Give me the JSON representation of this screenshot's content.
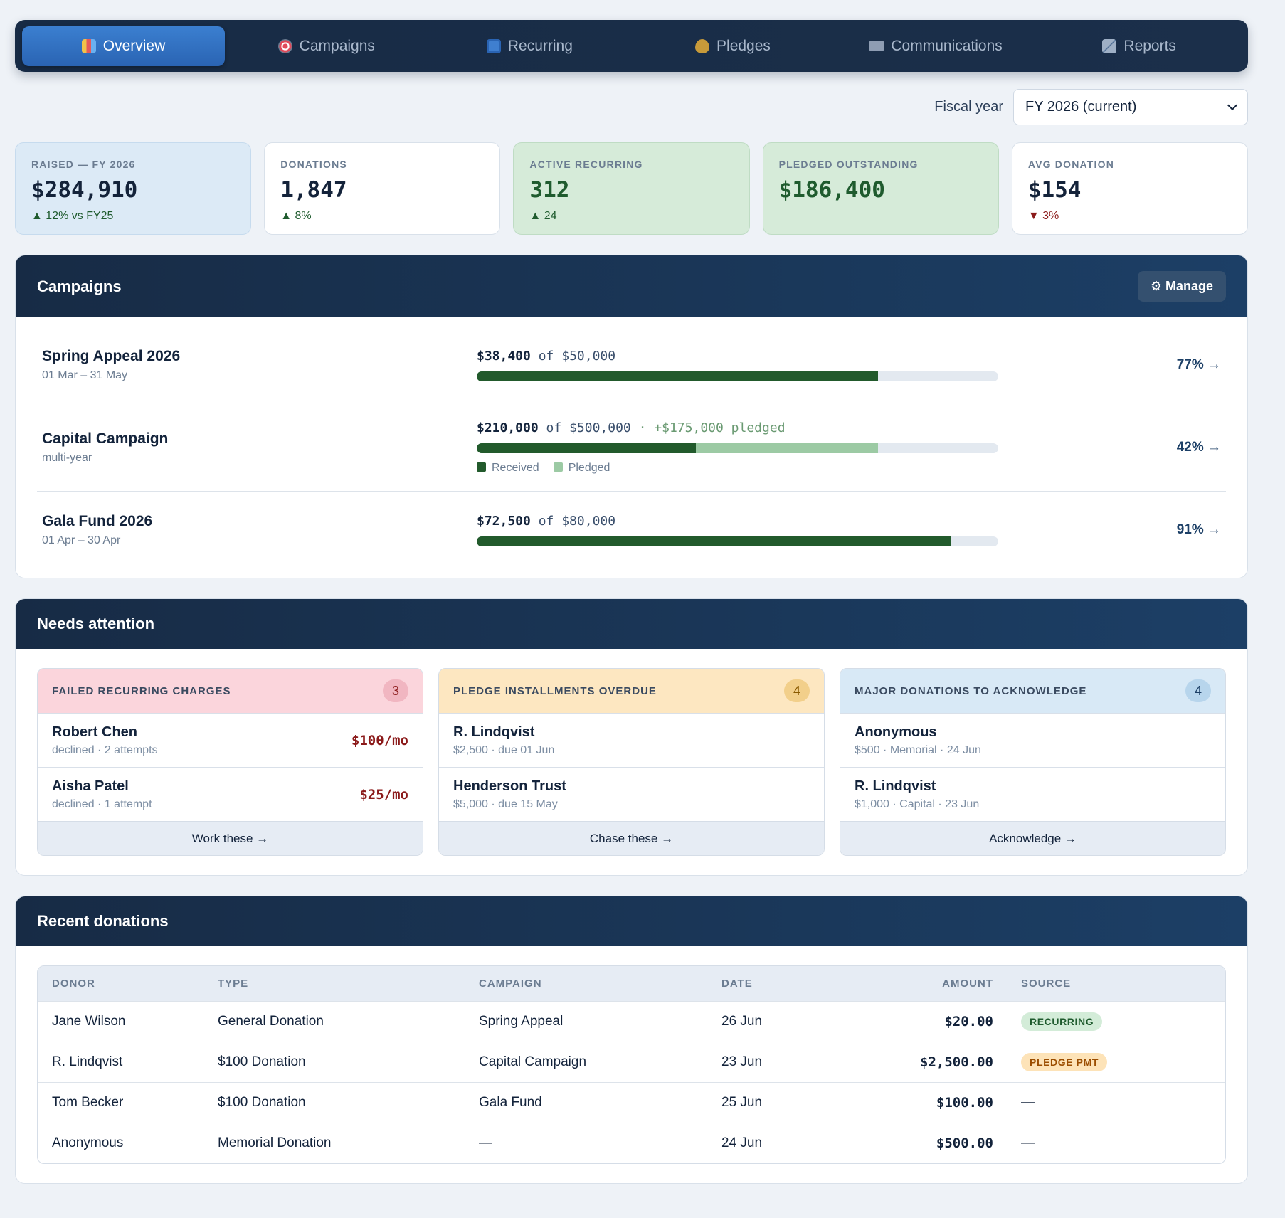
{
  "nav": {
    "tabs": [
      {
        "label": "Overview",
        "icon": "bar-chart-icon",
        "active": true
      },
      {
        "label": "Campaigns",
        "icon": "target-icon"
      },
      {
        "label": "Recurring",
        "icon": "repeat-icon"
      },
      {
        "label": "Pledges",
        "icon": "heart-icon"
      },
      {
        "label": "Communications",
        "icon": "mail-icon"
      },
      {
        "label": "Reports",
        "icon": "trend-icon"
      }
    ]
  },
  "fiscal": {
    "label": "Fiscal year",
    "selected": "FY 2026 (current)"
  },
  "kpis": [
    {
      "label": "RAISED — FY 2026",
      "value": "$284,910",
      "delta": "▲ 12% vs FY25",
      "trend": "up"
    },
    {
      "label": "DONATIONS",
      "value": "1,847",
      "delta": "▲ 8%",
      "trend": "up"
    },
    {
      "label": "ACTIVE RECURRING",
      "value": "312",
      "delta": "▲ 24",
      "trend": "up"
    },
    {
      "label": "PLEDGED OUTSTANDING",
      "value": "$186,400",
      "delta": "",
      "trend": "none"
    },
    {
      "label": "AVG DONATION",
      "value": "$154",
      "delta": "▼ 3%",
      "trend": "down"
    }
  ],
  "campaigns": {
    "title": "Campaigns",
    "manage_label": "⚙ Manage",
    "items": [
      {
        "name": "Spring Appeal 2026",
        "sub": "01 Mar – 31 May",
        "raised": "$38,400",
        "of": "of",
        "goal": "$50,000",
        "pledged_note": "",
        "received_frac": 0.77,
        "pledged_frac": 0,
        "pct": "77% →"
      },
      {
        "name": "Capital Campaign",
        "sub": "multi-year",
        "raised": "$210,000",
        "of": "of",
        "goal": "$500,000",
        "pledged_note": "· +$175,000 pledged",
        "received_frac": 0.42,
        "pledged_frac": 0.35,
        "pct": "42% →",
        "legend": {
          "received": "Received",
          "pledged": "Pledged"
        }
      },
      {
        "name": "Gala Fund 2026",
        "sub": "01 Apr – 30 Apr",
        "raised": "$72,500",
        "of": "of",
        "goal": "$80,000",
        "pledged_note": "",
        "received_frac": 0.91,
        "pledged_frac": 0,
        "pct": "91% →"
      }
    ]
  },
  "attention": {
    "title": "Needs attention",
    "panels": [
      {
        "title": "FAILED RECURRING CHARGES",
        "count": "3",
        "footer": "Work these →",
        "rows": [
          {
            "name": "Robert Chen",
            "sub": "declined · 2 attempts",
            "amount": "$100/mo"
          },
          {
            "name": "Aisha Patel",
            "sub": "declined · 1 attempt",
            "amount": "$25/mo"
          }
        ]
      },
      {
        "title": "PLEDGE INSTALLMENTS OVERDUE",
        "count": "4",
        "footer": "Chase these →",
        "rows": [
          {
            "name": "R. Lindqvist",
            "sub": "$2,500 · due 01 Jun",
            "amount": ""
          },
          {
            "name": "Henderson Trust",
            "sub": "$5,000 · due 15 May",
            "amount": ""
          }
        ]
      },
      {
        "title": "MAJOR DONATIONS TO ACKNOWLEDGE",
        "count": "4",
        "footer": "Acknowledge →",
        "rows": [
          {
            "name": "Anonymous",
            "sub": "$500 · Memorial · 24 Jun",
            "amount": ""
          },
          {
            "name": "R. Lindqvist",
            "sub": "$1,000 · Capital · 23 Jun",
            "amount": ""
          }
        ]
      }
    ]
  },
  "recent": {
    "title": "Recent donations",
    "columns": [
      "DONOR",
      "TYPE",
      "CAMPAIGN",
      "DATE",
      "AMOUNT",
      "SOURCE"
    ],
    "rows": [
      {
        "donor": "Jane Wilson",
        "type": "General Donation",
        "campaign": "Spring Appeal",
        "date": "26 Jun",
        "amount": "$20.00",
        "source": "RECURRING",
        "source_kind": "green"
      },
      {
        "donor": "R. Lindqvist",
        "type": "$100 Donation",
        "campaign": "Capital Campaign",
        "date": "23 Jun",
        "amount": "$2,500.00",
        "source": "PLEDGE PMT",
        "source_kind": "amber"
      },
      {
        "donor": "Tom Becker",
        "type": "$100 Donation",
        "campaign": "Gala Fund",
        "date": "25 Jun",
        "amount": "$100.00",
        "source": "—",
        "source_kind": "none"
      },
      {
        "donor": "Anonymous",
        "type": "Memorial Donation",
        "campaign": "—",
        "date": "24 Jun",
        "amount": "$500.00",
        "source": "—",
        "source_kind": "none"
      }
    ]
  },
  "colors": {
    "accent": "#2a64b3",
    "received": "#225a2c",
    "pledged": "#9ccaa4",
    "danger": "#8b1a1a"
  }
}
